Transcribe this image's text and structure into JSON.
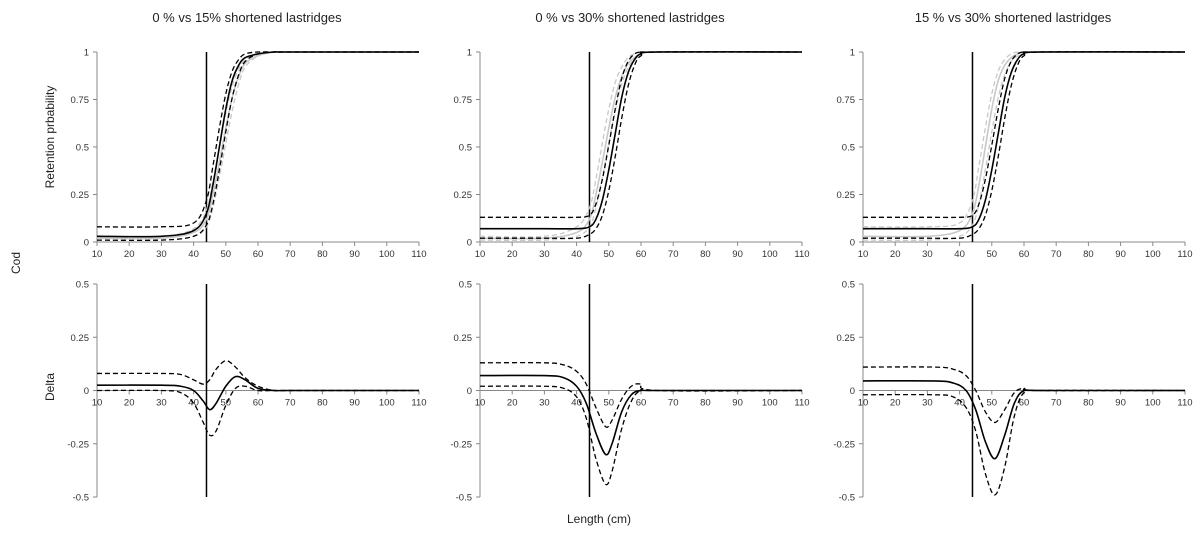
{
  "figure": {
    "overall_xlabel": "Length (cm)",
    "overall_side_label": "Cod",
    "row_labels": [
      "Retention prbability",
      "Delta"
    ]
  },
  "chart_data": [
    {
      "type": "line",
      "panel": "top-left",
      "title": "0 % vs 15% shortened lastridges",
      "xlabel": "",
      "ylabel": "Retention prbability",
      "xlim": [
        10,
        110
      ],
      "ylim": [
        0,
        1
      ],
      "xticks": [
        "10",
        "20",
        "30",
        "40",
        "50",
        "60",
        "70",
        "80",
        "90",
        "100",
        "110"
      ],
      "yticks": [
        "0",
        "0.25",
        "0.5",
        "0.75",
        "1"
      ],
      "vline_x": 44,
      "x": [
        10,
        30,
        40,
        44,
        46,
        48,
        50,
        52,
        54,
        56,
        60,
        65,
        70,
        110
      ],
      "series": [
        {
          "style": "gray-solid",
          "values": [
            0.02,
            0.02,
            0.05,
            0.12,
            0.25,
            0.42,
            0.6,
            0.76,
            0.87,
            0.94,
            0.98,
            1.0,
            1.0,
            1.0
          ]
        },
        {
          "style": "gray-dashed",
          "values": [
            0.01,
            0.01,
            0.03,
            0.08,
            0.18,
            0.34,
            0.52,
            0.69,
            0.83,
            0.92,
            0.98,
            1.0,
            1.0,
            1.0
          ]
        },
        {
          "style": "gray-dashed",
          "values": [
            0.03,
            0.03,
            0.07,
            0.17,
            0.32,
            0.5,
            0.68,
            0.82,
            0.91,
            0.96,
            0.99,
            1.0,
            1.0,
            1.0
          ]
        },
        {
          "style": "black-solid",
          "values": [
            0.03,
            0.03,
            0.06,
            0.15,
            0.3,
            0.5,
            0.7,
            0.85,
            0.93,
            0.97,
            0.99,
            1.0,
            1.0,
            1.0
          ]
        },
        {
          "style": "black-dashed",
          "values": [
            0.01,
            0.01,
            0.03,
            0.09,
            0.2,
            0.38,
            0.58,
            0.76,
            0.88,
            0.95,
            0.99,
            1.0,
            1.0,
            1.0
          ]
        },
        {
          "style": "black-dashed",
          "values": [
            0.08,
            0.08,
            0.1,
            0.22,
            0.4,
            0.6,
            0.78,
            0.9,
            0.96,
            0.99,
            1.0,
            1.0,
            1.0,
            1.0
          ]
        }
      ]
    },
    {
      "type": "line",
      "panel": "top-middle",
      "title": "0 % vs 30% shortened lastridges",
      "xlabel": "",
      "ylabel": "",
      "xlim": [
        10,
        110
      ],
      "ylim": [
        0,
        1
      ],
      "xticks": [
        "10",
        "20",
        "30",
        "40",
        "50",
        "60",
        "70",
        "80",
        "90",
        "100",
        "110"
      ],
      "yticks": [
        "0",
        "0.25",
        "0.5",
        "0.75",
        "1"
      ],
      "vline_x": 44,
      "x": [
        10,
        30,
        40,
        44,
        46,
        48,
        50,
        52,
        54,
        56,
        58,
        60,
        65,
        110
      ],
      "series": [
        {
          "style": "gray-solid",
          "values": [
            0.02,
            0.02,
            0.05,
            0.12,
            0.25,
            0.42,
            0.6,
            0.76,
            0.87,
            0.94,
            0.97,
            0.99,
            1.0,
            1.0
          ]
        },
        {
          "style": "gray-dashed",
          "values": [
            0.01,
            0.01,
            0.03,
            0.08,
            0.18,
            0.34,
            0.52,
            0.69,
            0.83,
            0.92,
            0.96,
            0.98,
            1.0,
            1.0
          ]
        },
        {
          "style": "gray-dashed",
          "values": [
            0.03,
            0.03,
            0.08,
            0.18,
            0.33,
            0.52,
            0.7,
            0.84,
            0.92,
            0.97,
            0.99,
            1.0,
            1.0,
            1.0
          ]
        },
        {
          "style": "black-solid",
          "values": [
            0.07,
            0.07,
            0.07,
            0.08,
            0.12,
            0.22,
            0.38,
            0.57,
            0.76,
            0.89,
            0.96,
            0.99,
            1.0,
            1.0
          ]
        },
        {
          "style": "black-dashed",
          "values": [
            0.02,
            0.02,
            0.02,
            0.04,
            0.07,
            0.14,
            0.27,
            0.45,
            0.65,
            0.82,
            0.93,
            0.98,
            1.0,
            1.0
          ]
        },
        {
          "style": "black-dashed",
          "values": [
            0.13,
            0.13,
            0.13,
            0.14,
            0.2,
            0.33,
            0.51,
            0.7,
            0.86,
            0.95,
            0.99,
            1.0,
            1.0,
            1.0
          ]
        }
      ]
    },
    {
      "type": "line",
      "panel": "top-right",
      "title": "15 % vs 30% shortened lastridges",
      "xlabel": "",
      "ylabel": "",
      "xlim": [
        10,
        110
      ],
      "ylim": [
        0,
        1
      ],
      "xticks": [
        "10",
        "20",
        "30",
        "40",
        "50",
        "60",
        "70",
        "80",
        "90",
        "100",
        "110"
      ],
      "yticks": [
        "0",
        "0.25",
        "0.5",
        "0.75",
        "1"
      ],
      "vline_x": 44,
      "x": [
        10,
        30,
        40,
        44,
        46,
        48,
        50,
        52,
        54,
        56,
        58,
        60,
        65,
        110
      ],
      "series": [
        {
          "style": "gray-solid",
          "values": [
            0.03,
            0.03,
            0.06,
            0.15,
            0.3,
            0.5,
            0.7,
            0.85,
            0.93,
            0.97,
            0.99,
            1.0,
            1.0,
            1.0
          ]
        },
        {
          "style": "gray-dashed",
          "values": [
            0.01,
            0.01,
            0.03,
            0.09,
            0.2,
            0.38,
            0.58,
            0.76,
            0.88,
            0.95,
            0.98,
            1.0,
            1.0,
            1.0
          ]
        },
        {
          "style": "gray-dashed",
          "values": [
            0.08,
            0.08,
            0.1,
            0.22,
            0.4,
            0.6,
            0.78,
            0.9,
            0.96,
            0.99,
            1.0,
            1.0,
            1.0,
            1.0
          ]
        },
        {
          "style": "black-solid",
          "values": [
            0.07,
            0.07,
            0.07,
            0.08,
            0.12,
            0.22,
            0.38,
            0.57,
            0.76,
            0.89,
            0.96,
            0.99,
            1.0,
            1.0
          ]
        },
        {
          "style": "black-dashed",
          "values": [
            0.02,
            0.02,
            0.02,
            0.04,
            0.07,
            0.14,
            0.27,
            0.45,
            0.65,
            0.82,
            0.93,
            0.98,
            1.0,
            1.0
          ]
        },
        {
          "style": "black-dashed",
          "values": [
            0.13,
            0.13,
            0.13,
            0.14,
            0.2,
            0.33,
            0.51,
            0.7,
            0.86,
            0.95,
            0.99,
            1.0,
            1.0,
            1.0
          ]
        }
      ]
    },
    {
      "type": "line",
      "panel": "bottom-left",
      "title": "",
      "xlabel": "",
      "ylabel": "Delta",
      "xlim": [
        10,
        110
      ],
      "ylim": [
        -0.5,
        0.5
      ],
      "xticks": [
        "10",
        "20",
        "30",
        "40",
        "50",
        "60",
        "70",
        "80",
        "90",
        "100",
        "110"
      ],
      "yticks": [
        "-0.5",
        "-0.25",
        "0",
        "0.25",
        "0.5"
      ],
      "vline_x": 44,
      "x": [
        10,
        30,
        36,
        40,
        43,
        45,
        47,
        50,
        53,
        56,
        60,
        65,
        70,
        110
      ],
      "series": [
        {
          "style": "black-solid",
          "values": [
            0.025,
            0.025,
            0.02,
            0.0,
            -0.05,
            -0.09,
            -0.06,
            0.02,
            0.065,
            0.05,
            0.01,
            0.0,
            0.0,
            0.0
          ]
        },
        {
          "style": "black-dashed",
          "values": [
            0.08,
            0.08,
            0.075,
            0.05,
            0.03,
            0.05,
            0.1,
            0.14,
            0.11,
            0.06,
            0.02,
            0.0,
            0.0,
            0.0
          ]
        },
        {
          "style": "black-dashed",
          "values": [
            0.0,
            0.0,
            -0.01,
            -0.06,
            -0.15,
            -0.21,
            -0.19,
            -0.07,
            0.01,
            0.02,
            0.0,
            0.0,
            0.0,
            0.0
          ]
        }
      ]
    },
    {
      "type": "line",
      "panel": "bottom-middle",
      "title": "",
      "xlabel": "",
      "ylabel": "",
      "xlim": [
        10,
        110
      ],
      "ylim": [
        -0.5,
        0.5
      ],
      "xticks": [
        "10",
        "20",
        "30",
        "40",
        "50",
        "60",
        "70",
        "80",
        "90",
        "100",
        "110"
      ],
      "yticks": [
        "-0.5",
        "-0.25",
        "0",
        "0.25",
        "0.5"
      ],
      "vline_x": 44,
      "x": [
        10,
        30,
        36,
        40,
        43,
        46,
        49,
        51,
        54,
        57,
        60,
        65,
        110
      ],
      "series": [
        {
          "style": "black-solid",
          "values": [
            0.07,
            0.07,
            0.06,
            0.02,
            -0.06,
            -0.2,
            -0.3,
            -0.25,
            -0.1,
            -0.02,
            0.0,
            0.0,
            0.0
          ]
        },
        {
          "style": "black-dashed",
          "values": [
            0.13,
            0.13,
            0.12,
            0.09,
            0.03,
            -0.08,
            -0.17,
            -0.14,
            -0.04,
            0.02,
            0.03,
            0.0,
            0.0
          ]
        },
        {
          "style": "black-dashed",
          "values": [
            0.02,
            0.02,
            0.01,
            -0.03,
            -0.13,
            -0.32,
            -0.44,
            -0.38,
            -0.18,
            -0.05,
            0.0,
            0.0,
            0.0
          ]
        }
      ]
    },
    {
      "type": "line",
      "panel": "bottom-right",
      "title": "",
      "xlabel": "",
      "ylabel": "",
      "xlim": [
        10,
        110
      ],
      "ylim": [
        -0.5,
        0.5
      ],
      "xticks": [
        "10",
        "20",
        "30",
        "40",
        "50",
        "60",
        "70",
        "80",
        "90",
        "100",
        "110"
      ],
      "yticks": [
        "-0.5",
        "-0.25",
        "0",
        "0.25",
        "0.5"
      ],
      "vline_x": 44,
      "x": [
        10,
        32,
        38,
        42,
        45,
        48,
        51,
        54,
        57,
        60,
        65,
        110
      ],
      "series": [
        {
          "style": "black-solid",
          "values": [
            0.045,
            0.045,
            0.035,
            0.0,
            -0.09,
            -0.24,
            -0.32,
            -0.21,
            -0.06,
            0.0,
            0.0,
            0.0
          ]
        },
        {
          "style": "black-dashed",
          "values": [
            0.11,
            0.11,
            0.1,
            0.07,
            0.0,
            -0.1,
            -0.15,
            -0.09,
            -0.01,
            0.01,
            0.0,
            0.0
          ]
        },
        {
          "style": "black-dashed",
          "values": [
            -0.02,
            -0.02,
            -0.03,
            -0.08,
            -0.19,
            -0.39,
            -0.49,
            -0.36,
            -0.12,
            -0.01,
            0.0,
            0.0
          ]
        }
      ]
    }
  ]
}
